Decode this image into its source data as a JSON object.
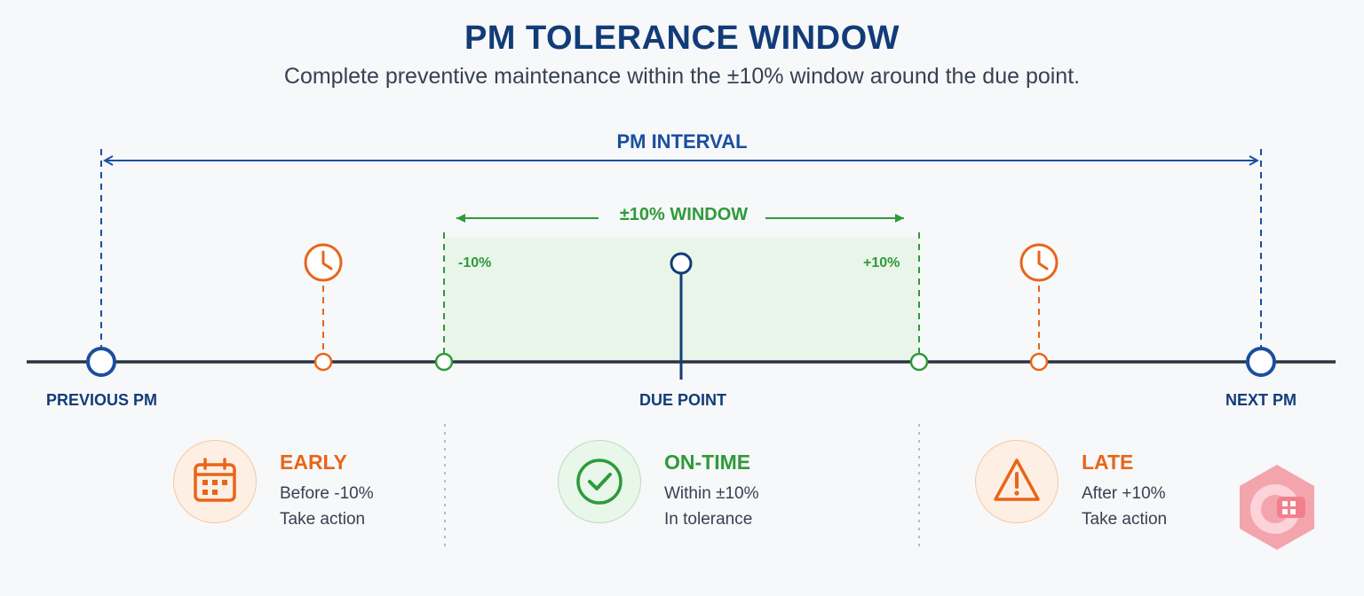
{
  "header": {
    "title": "PM TOLERANCE WINDOW",
    "subtitle": "Complete preventive maintenance within the ±10% window around the due point."
  },
  "interval": {
    "label": "PM INTERVAL"
  },
  "window": {
    "label": "±10% WINDOW",
    "minus_label": "-10%",
    "plus_label": "+10%"
  },
  "timeline": {
    "previous_label": "PREVIOUS PM",
    "due_label": "DUE POINT",
    "next_label": "NEXT PM"
  },
  "statuses": {
    "early": {
      "title": "EARLY",
      "line1": "Before -10%",
      "line2": "Take action",
      "icon": "calendar-icon"
    },
    "ontime": {
      "title": "ON-TIME",
      "line1": "Within ±10%",
      "line2": "In tolerance",
      "icon": "check-circle-icon"
    },
    "late": {
      "title": "LATE",
      "line1": "After +10%",
      "line2": "Take action",
      "icon": "warning-triangle-icon"
    }
  },
  "colors": {
    "navy": "#123c78",
    "blue": "#1a4fa0",
    "green": "#2e9a3a",
    "orange": "#e8651a",
    "window_fill": "#e9f5e9"
  }
}
